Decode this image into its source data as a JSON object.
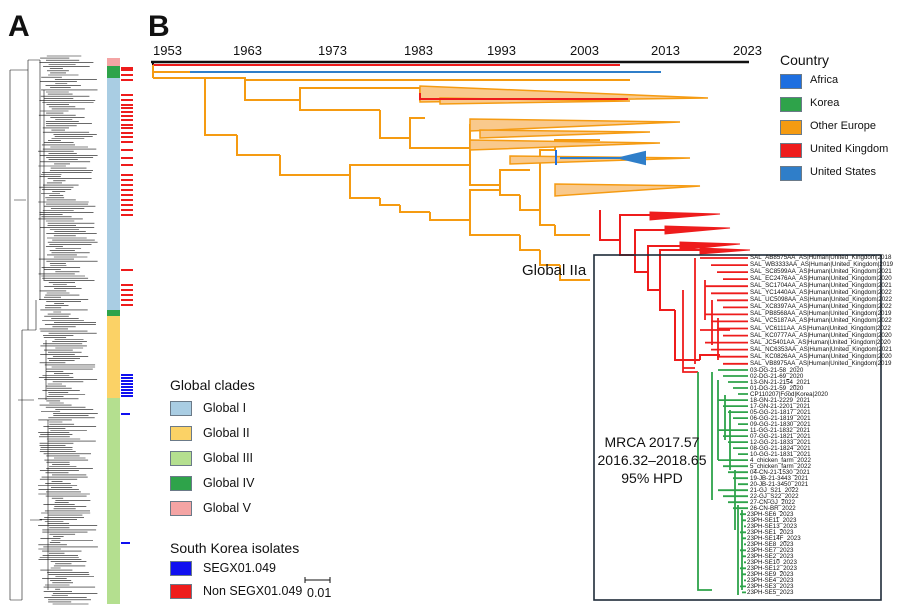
{
  "panels": {
    "a": "A",
    "b": "B"
  },
  "timeline": {
    "years": [
      "1953",
      "1963",
      "1973",
      "1983",
      "1993",
      "2003",
      "2013",
      "2023"
    ]
  },
  "country_legend": {
    "title": "Country",
    "items": [
      {
        "label": "Africa",
        "color": "#1e6fe0"
      },
      {
        "label": "Korea",
        "color": "#2ea34a"
      },
      {
        "label": "Other Europe",
        "color": "#f59b12"
      },
      {
        "label": "United Kingdom",
        "color": "#ee1c1c"
      },
      {
        "label": "United States",
        "color": "#2f7ec9"
      }
    ]
  },
  "clade_legend": {
    "title": "Global clades",
    "items": [
      {
        "label": "Global I",
        "color": "#a9cde3"
      },
      {
        "label": "Global II",
        "color": "#fbd266"
      },
      {
        "label": "Global III",
        "color": "#b4df8f"
      },
      {
        "label": "Global IV",
        "color": "#2ea34a"
      },
      {
        "label": "Global V",
        "color": "#f4a4a4"
      }
    ]
  },
  "isolate_legend": {
    "title": "South Korea isolates",
    "items": [
      {
        "label": "SEGX01.049",
        "color": "#1010f0"
      },
      {
        "label": "Non SEGX01.049",
        "color": "#ee1c1c"
      }
    ]
  },
  "scale_bar": {
    "label": "0.01"
  },
  "annotations": {
    "global_iia": "Global IIa",
    "mrca_line1": "MRCA 2017.57",
    "mrca_line2": "2016.32–2018.65",
    "mrca_line3": "95% HPD"
  },
  "uk_tips": [
    "SAL_AB8575AA_AS|Human|United_Kingdom|2018",
    "SAL_WB3333AA_AS|Human|United_Kingdom|2019",
    "SAL_SC8599AA_AS|Human|United_Kingdom|2021",
    "SAL_EC2476AA_AS|Human|United_Kingdom|2020",
    "SAL_SC1704AA_AS|Human|United_Kingdom|2021",
    "SAL_YC1440AA_AS|Human|United_Kingdom|2022",
    "SAL_UC5098AA_AS|Human|United_Kingdom|2022",
    "SAL_XC8397AA_AS|Human|United_Kingdom|2022",
    "SAL_PB8568AA_AS|Human|United_Kingdom|2019",
    "SAL_VC5187AA_AS|Human|United_Kingdom|2022",
    "SAL_VC6111AA_AS|Human|United_Kingdom|2022",
    "SAL_KC0777AA_AS|Human|United_Kingdom|2020",
    "SAL_JC5401AA_AS|Human|United_Kingdom|2020",
    "SAL_NC6353AA_AS|Human|United_Kingdom|2021",
    "SAL_KC0826AA_AS|Human|United_Kingdom|2020",
    "SAL_VB8975AA_AS|Human|United_Kingdom|2019"
  ],
  "korea_tips": [
    "03-DG-21-58_2020",
    "02-DG-21-69_2020",
    "13-GN-21-2154_2021",
    "01-DG-21-59_2020",
    "CP110207|Food|Korea|2020",
    "18-GN-21-2229_2021",
    "17-GN-21-2201_2021",
    "05-GG-21-1817_2021",
    "06-GG-21-1819_2021",
    "09-GG-21-1830_2021",
    "11-GG-21-1832_2021",
    "07-GG-21-1821_2021",
    "12-GG-21-1833_2021",
    "08-GG-21-1824_2021",
    "10-GG-21-1831_2021",
    "4_chicken_farm_2022",
    "5_chicken_farm_2022",
    "04-CN-21-1530_2021",
    "19-JB-21-3443_2021",
    "20-JB-21-3450_2021",
    "21-GJ_S21_2022",
    "22-GJ_S22_2022",
    "27-CN-GJ_2022",
    "26-CN-BR_2022",
    "23PH-SE6_2023",
    "23PH-SE11_2023",
    "23PH-SE13_2023",
    "23PH-SE1_2023",
    "23PH-SE14F_2023",
    "23PH-SE8_2023",
    "23PH-SE7_2023",
    "23PH-SE2_2023",
    "23PH-SE10_2023",
    "23PH-SE12_2023",
    "23PH-SE9_2023",
    "23PH-SE4_2023",
    "23PH-SE3_2023",
    "23PH-SE5_2023"
  ]
}
